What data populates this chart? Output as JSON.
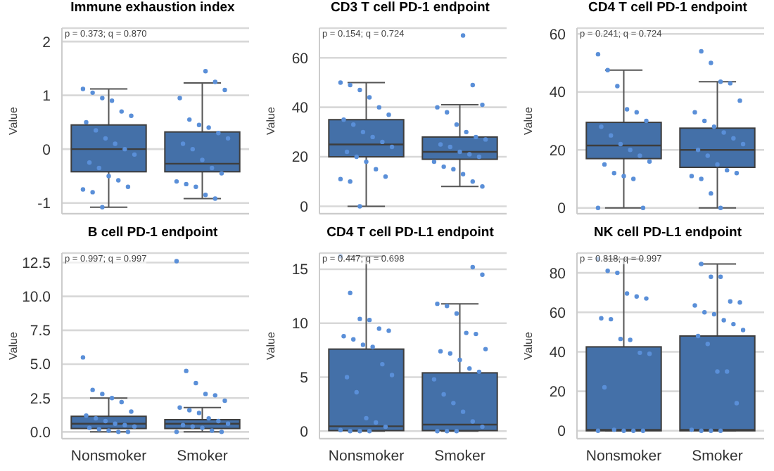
{
  "chart_data": [
    {
      "type": "box",
      "title": "Immune exhaustion index",
      "categories": [
        "Nonsmoker",
        "Smoker"
      ],
      "ylabel": "Value",
      "ylim": [
        -1.2,
        2.25
      ],
      "yticks": [
        -1,
        0,
        1,
        2
      ],
      "grid": "y",
      "tick_labels": "y",
      "annotations": [
        "p = 0.373; q = 0.870"
      ],
      "series": [
        {
          "type": "box",
          "color": "#4470a8",
          "boxes": [
            {
              "low": -1.08,
              "q1": -0.42,
              "median": 0,
              "q3": 0.45,
              "high": 1.12
            },
            {
              "low": -0.92,
              "q1": -0.42,
              "median": -0.27,
              "q3": 0.32,
              "high": 1.23
            }
          ]
        },
        {
          "type": "scatter",
          "color": "#5a8fd8",
          "x": [
            "Nonsmoker",
            "Nonsmoker",
            "Nonsmoker",
            "Nonsmoker",
            "Nonsmoker",
            "Nonsmoker",
            "Nonsmoker",
            "Nonsmoker",
            "Nonsmoker",
            "Nonsmoker",
            "Nonsmoker",
            "Nonsmoker",
            "Nonsmoker",
            "Nonsmoker",
            "Nonsmoker",
            "Nonsmoker",
            "Nonsmoker",
            "Nonsmoker",
            "Nonsmoker",
            "Nonsmoker",
            "Smoker",
            "Smoker",
            "Smoker",
            "Smoker",
            "Smoker",
            "Smoker",
            "Smoker",
            "Smoker",
            "Smoker",
            "Smoker",
            "Smoker",
            "Smoker",
            "Smoker",
            "Smoker",
            "Smoker",
            "Smoker",
            "Smoker",
            "Smoker",
            "Smoker"
          ],
          "values": [
            1.12,
            1.05,
            0.95,
            0.9,
            0.7,
            0.62,
            0.5,
            0.35,
            0.2,
            0.1,
            0,
            -0.1,
            -0.25,
            -0.35,
            -0.5,
            -0.58,
            -0.7,
            -0.75,
            -0.8,
            -1.08,
            1.45,
            1.25,
            1.1,
            0.95,
            0.55,
            0.45,
            0.4,
            0.3,
            0.2,
            0.1,
            0,
            -0.2,
            -0.35,
            -0.45,
            -0.6,
            -0.65,
            -0.7,
            -0.85,
            -0.92
          ]
        }
      ]
    },
    {
      "type": "box",
      "title": "CD3 T cell PD-1 endpoint",
      "categories": [
        "Nonsmoker",
        "Smoker"
      ],
      "ylabel": "Value",
      "ylim": [
        -3,
        72
      ],
      "yticks": [
        0,
        20,
        40,
        60
      ],
      "grid": "y",
      "tick_labels": "y",
      "annotations": [
        "p = 0.154; q = 0.724"
      ],
      "series": [
        {
          "type": "box",
          "color": "#4470a8",
          "boxes": [
            {
              "low": 0,
              "q1": 20,
              "median": 25,
              "q3": 35,
              "high": 50
            },
            {
              "low": 8,
              "q1": 19,
              "median": 22,
              "q3": 28,
              "high": 41
            }
          ]
        },
        {
          "type": "scatter",
          "color": "#5a8fd8",
          "x": [
            "Nonsmoker",
            "Nonsmoker",
            "Nonsmoker",
            "Nonsmoker",
            "Nonsmoker",
            "Nonsmoker",
            "Nonsmoker",
            "Nonsmoker",
            "Nonsmoker",
            "Nonsmoker",
            "Nonsmoker",
            "Nonsmoker",
            "Nonsmoker",
            "Nonsmoker",
            "Nonsmoker",
            "Nonsmoker",
            "Nonsmoker",
            "Nonsmoker",
            "Nonsmoker",
            "Nonsmoker",
            "Smoker",
            "Smoker",
            "Smoker",
            "Smoker",
            "Smoker",
            "Smoker",
            "Smoker",
            "Smoker",
            "Smoker",
            "Smoker",
            "Smoker",
            "Smoker",
            "Smoker",
            "Smoker",
            "Smoker",
            "Smoker",
            "Smoker",
            "Smoker",
            "Smoker",
            "Smoker"
          ],
          "values": [
            50,
            49,
            47,
            44,
            40,
            37,
            35,
            33,
            30,
            28,
            26,
            24,
            22,
            20,
            18,
            15,
            12,
            11,
            10,
            0,
            69,
            49,
            41,
            40,
            38,
            33,
            30,
            28,
            27,
            25,
            24,
            22,
            21,
            20,
            18,
            16,
            15,
            13,
            10,
            8
          ]
        }
      ]
    },
    {
      "type": "box",
      "title": "CD4 T cell PD-1 endpoint",
      "categories": [
        "Nonsmoker",
        "Smoker"
      ],
      "ylabel": "Value",
      "ylim": [
        -2,
        62
      ],
      "yticks": [
        0,
        20,
        40,
        60
      ],
      "grid": "y",
      "tick_labels": "y",
      "annotations": [
        "p = 0.241; q = 0.724"
      ],
      "series": [
        {
          "type": "box",
          "color": "#4470a8",
          "boxes": [
            {
              "low": 0,
              "q1": 17,
              "median": 21.5,
              "q3": 29.5,
              "high": 47.5
            },
            {
              "low": 0,
              "q1": 14,
              "median": 20,
              "q3": 27.5,
              "high": 43.5
            }
          ]
        },
        {
          "type": "scatter",
          "color": "#5a8fd8",
          "x": [
            "Nonsmoker",
            "Nonsmoker",
            "Nonsmoker",
            "Nonsmoker",
            "Nonsmoker",
            "Nonsmoker",
            "Nonsmoker",
            "Nonsmoker",
            "Nonsmoker",
            "Nonsmoker",
            "Nonsmoker",
            "Nonsmoker",
            "Nonsmoker",
            "Nonsmoker",
            "Nonsmoker",
            "Nonsmoker",
            "Nonsmoker",
            "Nonsmoker",
            "Smoker",
            "Smoker",
            "Smoker",
            "Smoker",
            "Smoker",
            "Smoker",
            "Smoker",
            "Smoker",
            "Smoker",
            "Smoker",
            "Smoker",
            "Smoker",
            "Smoker",
            "Smoker",
            "Smoker",
            "Smoker",
            "Smoker",
            "Smoker",
            "Smoker",
            "Smoker"
          ],
          "values": [
            53,
            47.5,
            42,
            34,
            33,
            30,
            28,
            25,
            22,
            20,
            18,
            16,
            15,
            12,
            11,
            10,
            0,
            0,
            54,
            50,
            43.5,
            43,
            37,
            33,
            30,
            28,
            26,
            24,
            22,
            20,
            18,
            15,
            13,
            12,
            11,
            10,
            5,
            0
          ]
        }
      ]
    },
    {
      "type": "box",
      "title": "B cell PD-1 endpoint",
      "categories": [
        "Nonsmoker",
        "Smoker"
      ],
      "ylabel": "Value",
      "ylim": [
        -0.5,
        13.2
      ],
      "yticks": [
        {
          "value": 0,
          "label": "0.0"
        },
        2.5,
        {
          "value": 5,
          "label": "5.0"
        },
        7.5,
        {
          "value": 10,
          "label": "10.0"
        },
        12.5
      ],
      "grid": "y",
      "annotations": [
        "p = 0.997; q = 0.997"
      ],
      "series": [
        {
          "type": "box",
          "color": "#4470a8",
          "boxes": [
            {
              "low": 0,
              "q1": 0.25,
              "median": 0.6,
              "q3": 1.15,
              "high": 2.5
            },
            {
              "low": 0,
              "q1": 0.25,
              "median": 0.6,
              "q3": 0.9,
              "high": 1.8
            }
          ]
        },
        {
          "type": "scatter",
          "color": "#5a8fd8",
          "x": [
            "Nonsmoker",
            "Nonsmoker",
            "Nonsmoker",
            "Nonsmoker",
            "Nonsmoker",
            "Nonsmoker",
            "Nonsmoker",
            "Nonsmoker",
            "Nonsmoker",
            "Nonsmoker",
            "Nonsmoker",
            "Nonsmoker",
            "Nonsmoker",
            "Nonsmoker",
            "Nonsmoker",
            "Nonsmoker",
            "Nonsmoker",
            "Smoker",
            "Smoker",
            "Smoker",
            "Smoker",
            "Smoker",
            "Smoker",
            "Smoker",
            "Smoker",
            "Smoker",
            "Smoker",
            "Smoker",
            "Smoker",
            "Smoker",
            "Smoker",
            "Smoker",
            "Smoker",
            "Smoker",
            "Smoker"
          ],
          "values": [
            5.5,
            3.1,
            2.8,
            2.5,
            2.2,
            1.5,
            1.2,
            1,
            0.8,
            0.6,
            0.5,
            0.4,
            0.3,
            0.2,
            0.1,
            0,
            0,
            12.6,
            4.5,
            3.6,
            2.8,
            2.7,
            2.3,
            1.8,
            1.6,
            1.4,
            1,
            0.8,
            0.6,
            0.5,
            0.4,
            0.3,
            0.1,
            0,
            0
          ]
        }
      ]
    },
    {
      "type": "box",
      "title": "CD4 T cell PD-L1 endpoint",
      "categories": [
        "Nonsmoker",
        "Smoker"
      ],
      "ylabel": "Value",
      "ylim": [
        -0.7,
        16.5
      ],
      "yticks": [
        0,
        5,
        10,
        15
      ],
      "grid": "y",
      "annotations": [
        "p = 0.447; q = 0.698"
      ],
      "series": [
        {
          "type": "box",
          "color": "#4470a8",
          "boxes": [
            {
              "low": 0,
              "q1": 0.05,
              "median": 0.45,
              "q3": 7.6,
              "high": 16.2
            },
            {
              "low": 0,
              "q1": 0.05,
              "median": 0.6,
              "q3": 5.4,
              "high": 11.8
            }
          ]
        },
        {
          "type": "scatter",
          "color": "#5a8fd8",
          "x": [
            "Nonsmoker",
            "Nonsmoker",
            "Nonsmoker",
            "Nonsmoker",
            "Nonsmoker",
            "Nonsmoker",
            "Nonsmoker",
            "Nonsmoker",
            "Nonsmoker",
            "Nonsmoker",
            "Nonsmoker",
            "Nonsmoker",
            "Nonsmoker",
            "Nonsmoker",
            "Nonsmoker",
            "Nonsmoker",
            "Nonsmoker",
            "Nonsmoker",
            "Nonsmoker",
            "Nonsmoker",
            "Nonsmoker",
            "Smoker",
            "Smoker",
            "Smoker",
            "Smoker",
            "Smoker",
            "Smoker",
            "Smoker",
            "Smoker",
            "Smoker",
            "Smoker",
            "Smoker",
            "Smoker",
            "Smoker",
            "Smoker",
            "Smoker",
            "Smoker",
            "Smoker",
            "Smoker",
            "Smoker",
            "Smoker",
            "Smoker",
            "Smoker"
          ],
          "values": [
            16.2,
            12.8,
            10.4,
            10.3,
            9.5,
            9.3,
            8.8,
            8.5,
            8,
            7.8,
            6.2,
            5.2,
            5,
            3.6,
            1.2,
            0.8,
            0.4,
            0.1,
            0,
            0,
            0,
            15.2,
            14.5,
            11.8,
            11.6,
            10.9,
            9.1,
            9,
            7.6,
            7.4,
            7.2,
            6.6,
            5.8,
            5.5,
            4.8,
            3.4,
            2.6,
            1.8,
            0.9,
            0.4,
            0,
            0,
            0
          ]
        }
      ]
    },
    {
      "type": "box",
      "title": "NK cell PD-L1 endpoint",
      "categories": [
        "Nonsmoker",
        "Smoker"
      ],
      "ylabel": "Value",
      "ylim": [
        -4,
        90
      ],
      "yticks": [
        0,
        20,
        40,
        60,
        80
      ],
      "grid": "y",
      "annotations": [
        "p = 0.818; q = 0.997"
      ],
      "series": [
        {
          "type": "box",
          "color": "#4470a8",
          "boxes": [
            {
              "low": 0,
              "q1": 0,
              "median": 0.5,
              "q3": 42.5,
              "high": 87
            },
            {
              "low": 0,
              "q1": 0,
              "median": 0.5,
              "q3": 48,
              "high": 84.5
            }
          ]
        },
        {
          "type": "scatter",
          "color": "#5a8fd8",
          "x": [
            "Nonsmoker",
            "Nonsmoker",
            "Nonsmoker",
            "Nonsmoker",
            "Nonsmoker",
            "Nonsmoker",
            "Nonsmoker",
            "Nonsmoker",
            "Nonsmoker",
            "Nonsmoker",
            "Nonsmoker",
            "Nonsmoker",
            "Nonsmoker",
            "Nonsmoker",
            "Nonsmoker",
            "Nonsmoker",
            "Nonsmoker",
            "Nonsmoker",
            "Smoker",
            "Smoker",
            "Smoker",
            "Smoker",
            "Smoker",
            "Smoker",
            "Smoker",
            "Smoker",
            "Smoker",
            "Smoker",
            "Smoker",
            "Smoker",
            "Smoker",
            "Smoker",
            "Smoker",
            "Smoker",
            "Smoker",
            "Smoker",
            "Smoker",
            "Smoker"
          ],
          "values": [
            87,
            81,
            80,
            69.5,
            68,
            67,
            57,
            56.5,
            46.5,
            46,
            39.5,
            39,
            22,
            0.5,
            0,
            0,
            0,
            0,
            84.5,
            78,
            78,
            65.5,
            65,
            63.5,
            60,
            59,
            56,
            54,
            51,
            48,
            44,
            30,
            30,
            14,
            0.5,
            0,
            0,
            0
          ]
        }
      ]
    }
  ]
}
